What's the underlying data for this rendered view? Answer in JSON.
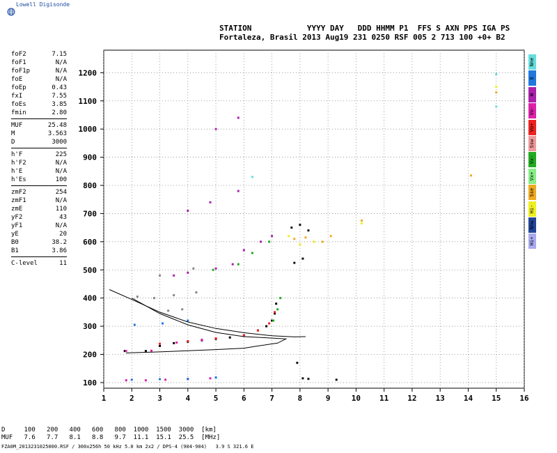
{
  "brand": {
    "name": "Lowell Digisonde",
    "logo_icon": "globe-icon"
  },
  "header": {
    "line1": "STATION            YYYY DAY   DDD HHMM P1  FFS S AXN PPS IGA PS",
    "line2": "Fortaleza, Brasil 2013 Aug19 231 0250 RSF 005 2 713 100 +0+ B2"
  },
  "params": {
    "group1": [
      {
        "label": "foF2",
        "value": "7.15"
      },
      {
        "label": "foF1",
        "value": "N/A"
      },
      {
        "label": "foF1p",
        "value": "N/A"
      },
      {
        "label": "foE",
        "value": "N/A"
      },
      {
        "label": "foEp",
        "value": "0.43"
      },
      {
        "label": "fxI",
        "value": "7.55"
      },
      {
        "label": "foEs",
        "value": "3.85"
      },
      {
        "label": "fmin",
        "value": "2.80"
      }
    ],
    "group2": [
      {
        "label": "MUF",
        "value": "25.48"
      },
      {
        "label": "M",
        "value": "3.563"
      },
      {
        "label": "D",
        "value": "3000"
      }
    ],
    "group3": [
      {
        "label": "h'F",
        "value": "225"
      },
      {
        "label": "h'F2",
        "value": "N/A"
      },
      {
        "label": "h'E",
        "value": "N/A"
      },
      {
        "label": "h'Es",
        "value": "100"
      }
    ],
    "group4": [
      {
        "label": "zmF2",
        "value": "254"
      },
      {
        "label": "zmF1",
        "value": "N/A"
      },
      {
        "label": "zmE",
        "value": "110"
      },
      {
        "label": "yF2",
        "value": "43"
      },
      {
        "label": "yF1",
        "value": "N/A"
      },
      {
        "label": "yE",
        "value": "20"
      },
      {
        "label": "B0",
        "value": "38.2"
      },
      {
        "label": "B1",
        "value": "3.86"
      }
    ],
    "group5": [
      {
        "label": "C-level",
        "value": "11"
      }
    ]
  },
  "legend": [
    {
      "label": "Nne",
      "color": "#66dddd"
    },
    {
      "label": "E",
      "color": "#2277dd"
    },
    {
      "label": "W",
      "color": "#aa22aa"
    },
    {
      "label": "Vo-",
      "color": "#dd22aa"
    },
    {
      "label": "Vo+",
      "color": "#ee2222"
    },
    {
      "label": "Ssw",
      "color": "#ee9999"
    },
    {
      "label": "Vx-",
      "color": "#22aa22"
    },
    {
      "label": "Vx+",
      "color": "#88ee88"
    },
    {
      "label": "Sse",
      "color": "#eeaa22"
    },
    {
      "label": "Hi-",
      "color": "#eeee22"
    },
    {
      "label": "Nnw",
      "color": "#224499"
    },
    {
      "label": "Hi+",
      "color": "#aaaaee"
    }
  ],
  "muf_table": {
    "row_d": "D     100   200   400   600   800  1000  1500  3000  [km]",
    "row_muf": "MUF   7.6   7.7   8.1   8.8   9.7  11.1  15.1  25.5  [MHz]"
  },
  "footer": "FZA0M_2013231025000.RSF / 300x256h 50 kHz 5.0 km 2x2 / DPS-4 (904-904)   3.9 S 321.6 E",
  "chart_data": {
    "type": "scatter",
    "xlim": [
      1,
      16
    ],
    "ylim": [
      80,
      1280
    ],
    "x_ticks": [
      1,
      2,
      3,
      4,
      5,
      6,
      7,
      8,
      9,
      10,
      11,
      12,
      13,
      14,
      15,
      16
    ],
    "y_ticks": [
      100,
      200,
      300,
      400,
      500,
      600,
      700,
      800,
      900,
      1000,
      1100,
      1200
    ],
    "grid": true,
    "series": [
      {
        "color": "#000000",
        "points": [
          [
            1.75,
            212
          ],
          [
            2.5,
            212
          ],
          [
            3.0,
            230
          ],
          [
            3.5,
            240
          ],
          [
            4.0,
            245
          ],
          [
            4.5,
            250
          ],
          [
            5.0,
            255
          ],
          [
            5.5,
            260
          ],
          [
            6.0,
            268
          ],
          [
            6.5,
            285
          ],
          [
            6.8,
            300
          ],
          [
            7.0,
            320
          ],
          [
            7.1,
            345
          ],
          [
            7.15,
            380
          ]
        ]
      },
      {
        "color": "#ee2222",
        "points": [
          [
            3.0,
            238
          ],
          [
            4.0,
            247
          ],
          [
            5.0,
            257
          ],
          [
            6.0,
            268
          ],
          [
            6.5,
            285
          ],
          [
            6.9,
            310
          ],
          [
            7.1,
            350
          ]
        ]
      },
      {
        "color": "#dd22aa",
        "points": [
          [
            1.8,
            108
          ],
          [
            2.5,
            108
          ],
          [
            3.2,
            110
          ],
          [
            4.0,
            112
          ],
          [
            4.8,
            115
          ],
          [
            1.8,
            212
          ],
          [
            2.7,
            213
          ],
          [
            3.6,
            242
          ],
          [
            4.5,
            252
          ]
        ]
      },
      {
        "color": "#22aa22",
        "points": [
          [
            7.05,
            320
          ],
          [
            7.2,
            360
          ],
          [
            7.3,
            400
          ],
          [
            4.9,
            500
          ],
          [
            5.8,
            520
          ],
          [
            6.3,
            560
          ],
          [
            6.9,
            600
          ]
        ]
      },
      {
        "color": "#2277dd",
        "points": [
          [
            2.0,
            110
          ],
          [
            3.0,
            112
          ],
          [
            4.0,
            113
          ],
          [
            5.0,
            118
          ],
          [
            2.1,
            305
          ],
          [
            3.1,
            310
          ],
          [
            4.0,
            320
          ]
        ]
      },
      {
        "color": "#aa22aa",
        "points": [
          [
            3.5,
            480
          ],
          [
            4.0,
            490
          ],
          [
            5.0,
            505
          ],
          [
            5.6,
            520
          ],
          [
            4.0,
            710
          ],
          [
            4.8,
            740
          ],
          [
            5.8,
            780
          ],
          [
            5.0,
            1000
          ],
          [
            5.8,
            1040
          ],
          [
            6.0,
            570
          ],
          [
            6.6,
            600
          ],
          [
            7.0,
            620
          ]
        ]
      },
      {
        "color": "#888888",
        "points": [
          [
            2.8,
            400
          ],
          [
            3.5,
            410
          ],
          [
            4.3,
            420
          ],
          [
            3.3,
            355
          ],
          [
            3.8,
            360
          ],
          [
            2.2,
            405
          ],
          [
            3.0,
            480
          ],
          [
            4.2,
            505
          ]
        ]
      },
      {
        "color": "#eeaa22",
        "points": [
          [
            7.8,
            610
          ],
          [
            8.2,
            615
          ],
          [
            8.8,
            600
          ],
          [
            9.1,
            620
          ],
          [
            10.2,
            675
          ],
          [
            15.0,
            1130
          ],
          [
            14.1,
            835
          ]
        ]
      },
      {
        "color": "#eeee22",
        "points": [
          [
            7.6,
            620
          ],
          [
            8.0,
            590
          ],
          [
            8.5,
            600
          ],
          [
            15.0,
            1150
          ],
          [
            10.2,
            665
          ]
        ]
      },
      {
        "color": "#66dddd",
        "points": [
          [
            15.0,
            1195
          ],
          [
            15.0,
            1080
          ],
          [
            6.3,
            830
          ]
        ]
      },
      {
        "color": "#111111",
        "points": [
          [
            7.7,
            650
          ],
          [
            8.0,
            660
          ],
          [
            8.3,
            640
          ],
          [
            7.8,
            525
          ],
          [
            8.1,
            540
          ],
          [
            7.9,
            170
          ],
          [
            8.1,
            115
          ],
          [
            8.3,
            113
          ],
          [
            9.3,
            110
          ]
        ]
      }
    ],
    "curves": [
      {
        "label": "",
        "points": [
          [
            1.2,
            430
          ],
          [
            2,
            395
          ],
          [
            3,
            350
          ],
          [
            4,
            315
          ],
          [
            5,
            292
          ],
          [
            6,
            277
          ],
          [
            7,
            266
          ],
          [
            7.8,
            262
          ],
          [
            8.2,
            263
          ]
        ]
      },
      {
        "label": "",
        "points": [
          [
            2.0,
            400
          ],
          [
            3,
            345
          ],
          [
            4,
            305
          ],
          [
            5,
            278
          ],
          [
            6,
            263
          ],
          [
            7.0,
            258
          ],
          [
            7.5,
            255
          ],
          [
            7.2,
            240
          ],
          [
            6.5,
            230
          ],
          [
            6,
            222
          ],
          [
            5,
            217
          ],
          [
            4,
            213
          ],
          [
            3,
            209
          ],
          [
            2,
            206
          ],
          [
            1.8,
            205
          ]
        ]
      }
    ]
  }
}
